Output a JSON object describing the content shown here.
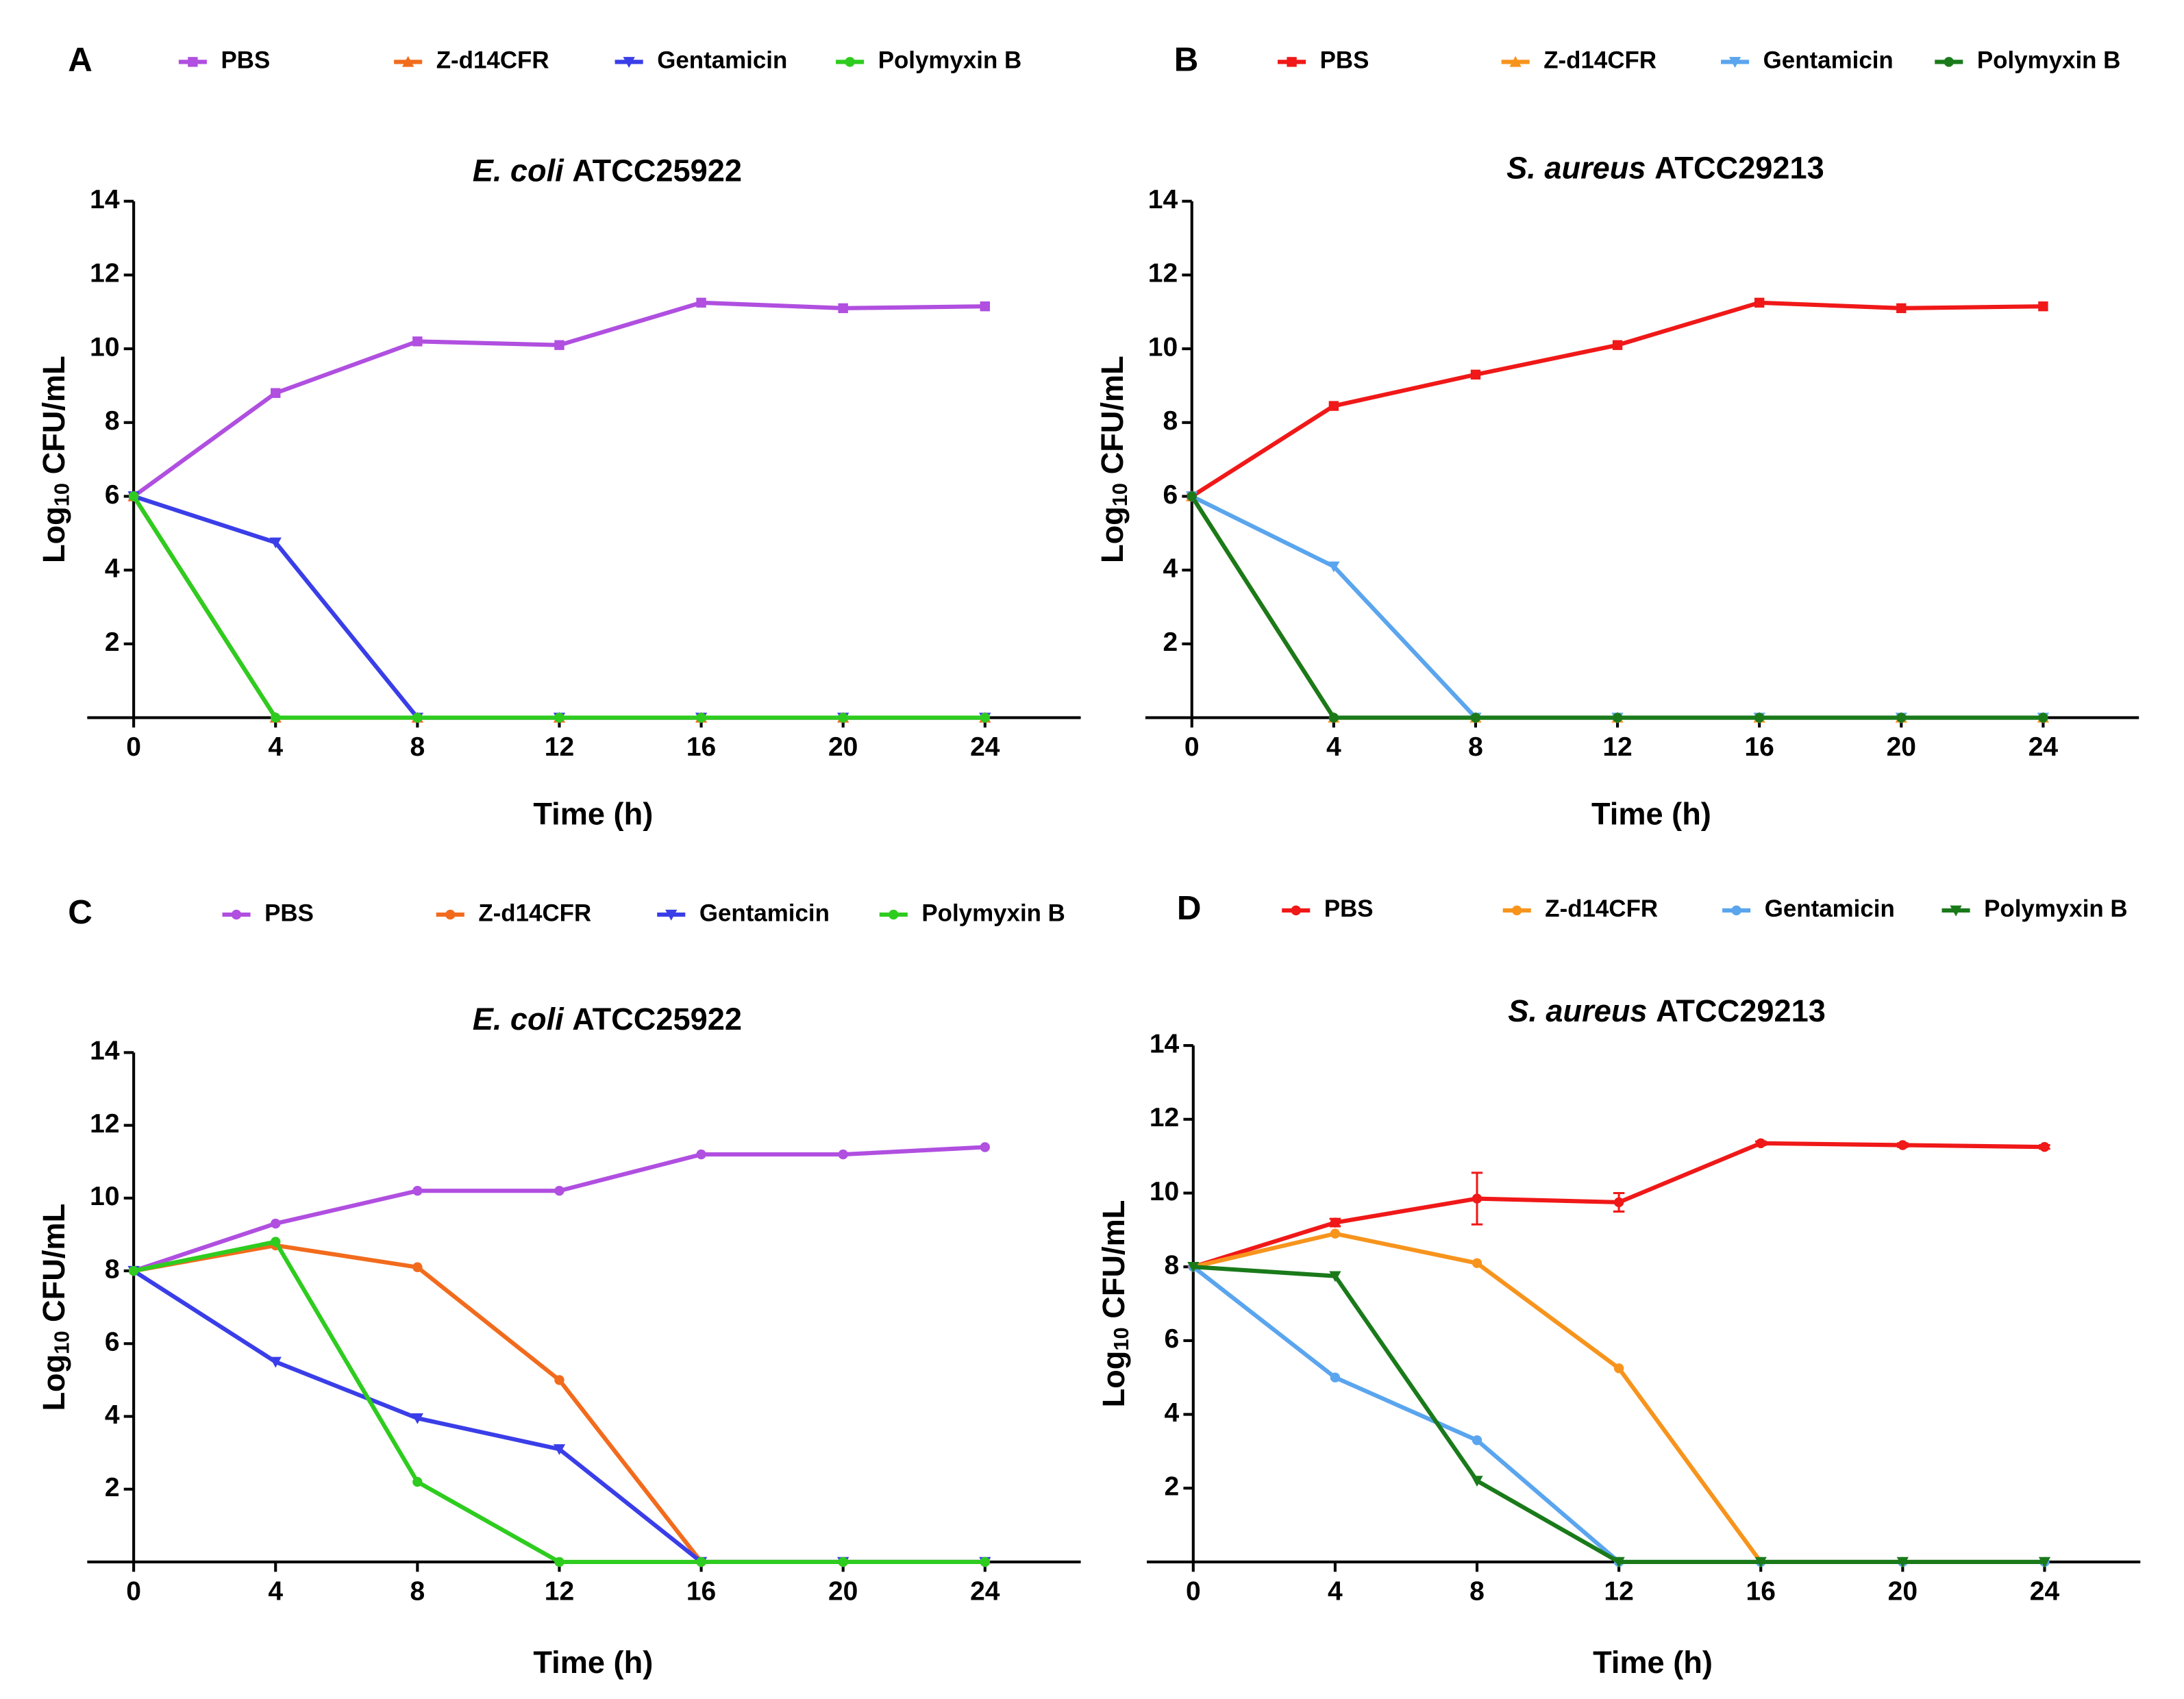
{
  "chart_data": [
    {
      "type": "line",
      "panel": "A",
      "title_italic": "E. coli",
      "title": "ATCC25922",
      "y_label": {
        "base": "Log",
        "sub": "10",
        "unit": "CFU/mL"
      },
      "x_label": "Time (h)",
      "x": [
        0,
        4,
        8,
        12,
        16,
        20,
        24
      ],
      "xlim": [
        0,
        26.7
      ],
      "xticks": [
        0,
        4,
        8,
        12,
        16,
        20,
        24
      ],
      "ylim": [
        0,
        14
      ],
      "yticks": [
        2,
        4,
        6,
        8,
        10,
        12,
        14
      ],
      "series": [
        {
          "name": "PBS",
          "color": "#b04fe0",
          "marker": "square",
          "values": [
            6,
            8.8,
            10.2,
            10.1,
            11.25,
            11.1,
            11.15
          ]
        },
        {
          "name": "Z-d14CFR",
          "color": "#f26b1d",
          "marker": "triangle-up",
          "values": [
            6,
            0,
            0,
            0,
            0,
            0,
            0
          ]
        },
        {
          "name": "Gentamicin",
          "color": "#3a3ee8",
          "marker": "triangle-down",
          "values": [
            6,
            4.75,
            0,
            0,
            0,
            0,
            0
          ]
        },
        {
          "name": "Polymyxin B",
          "color": "#2ecc1f",
          "marker": "circle",
          "values": [
            6,
            0,
            0,
            0,
            0,
            0,
            0
          ]
        }
      ]
    },
    {
      "type": "line",
      "panel": "B",
      "title_italic": "S. aureus",
      "title": "ATCC29213",
      "y_label": {
        "base": "Log",
        "sub": "10",
        "unit": "CFU/mL"
      },
      "x_label": "Time (h)",
      "x": [
        0,
        4,
        8,
        12,
        16,
        20,
        24
      ],
      "xlim": [
        0,
        26.7
      ],
      "xticks": [
        0,
        4,
        8,
        12,
        16,
        20,
        24
      ],
      "ylim": [
        0,
        14
      ],
      "yticks": [
        2,
        4,
        6,
        8,
        10,
        12,
        14
      ],
      "series": [
        {
          "name": "PBS",
          "color": "#f01818",
          "marker": "square",
          "values": [
            6,
            8.45,
            9.3,
            10.1,
            11.25,
            11.1,
            11.15
          ]
        },
        {
          "name": "Z-d14CFR",
          "color": "#f7941d",
          "marker": "triangle-up",
          "values": [
            6,
            0,
            0,
            0,
            0,
            0,
            0
          ]
        },
        {
          "name": "Gentamicin",
          "color": "#5aa5ee",
          "marker": "triangle-down",
          "values": [
            6,
            4.1,
            0,
            0,
            0,
            0,
            0
          ]
        },
        {
          "name": "Polymyxin B",
          "color": "#1a7a1a",
          "marker": "circle",
          "values": [
            6,
            0,
            0,
            0,
            0,
            0,
            0
          ]
        }
      ]
    },
    {
      "type": "line",
      "panel": "C",
      "title_italic": "E. coli",
      "title": "ATCC25922",
      "y_label": {
        "base": "Log",
        "sub": "10",
        "unit": "CFU/mL"
      },
      "x_label": "Time (h)",
      "x": [
        0,
        4,
        8,
        12,
        16,
        20,
        24
      ],
      "xlim": [
        0,
        26.7
      ],
      "xticks": [
        0,
        4,
        8,
        12,
        16,
        20,
        24
      ],
      "ylim": [
        0,
        14
      ],
      "yticks": [
        2,
        4,
        6,
        8,
        10,
        12,
        14
      ],
      "series": [
        {
          "name": "PBS",
          "color": "#b04fe0",
          "marker": "circle",
          "values": [
            8,
            9.3,
            10.2,
            10.2,
            11.2,
            11.2,
            11.4
          ]
        },
        {
          "name": "Z-d14CFR",
          "color": "#f26b1d",
          "marker": "circle",
          "values": [
            8,
            8.7,
            8.1,
            5,
            0,
            0,
            0
          ]
        },
        {
          "name": "Gentamicin",
          "color": "#3a3ee8",
          "marker": "triangle-down",
          "values": [
            8,
            5.5,
            3.95,
            3.1,
            0,
            0,
            0
          ]
        },
        {
          "name": "Polymyxin B",
          "color": "#2ecc1f",
          "marker": "circle",
          "values": [
            8,
            8.8,
            2.2,
            0,
            0,
            0,
            0
          ]
        }
      ]
    },
    {
      "type": "line",
      "panel": "D",
      "title_italic": "S. aureus",
      "title": "ATCC29213",
      "y_label": {
        "base": "Log",
        "sub": "10",
        "unit": "CFU/mL"
      },
      "x_label": "Time (h)",
      "x": [
        0,
        4,
        8,
        12,
        16,
        20,
        24
      ],
      "xlim": [
        0,
        26.7
      ],
      "xticks": [
        0,
        4,
        8,
        12,
        16,
        20,
        24
      ],
      "ylim": [
        0,
        14
      ],
      "yticks": [
        2,
        4,
        6,
        8,
        10,
        12,
        14
      ],
      "series": [
        {
          "name": "PBS",
          "color": "#f01818",
          "marker": "circle",
          "values": [
            8,
            9.2,
            9.85,
            9.75,
            11.35,
            11.3,
            11.25
          ],
          "errors": [
            0,
            0.1,
            0.7,
            0.25,
            0.05,
            0.05,
            0.05
          ]
        },
        {
          "name": "Z-d14CFR",
          "color": "#f7941d",
          "marker": "circle",
          "values": [
            8,
            8.9,
            8.1,
            5.25,
            0,
            0,
            0
          ]
        },
        {
          "name": "Gentamicin",
          "color": "#5aa5ee",
          "marker": "circle",
          "values": [
            8,
            5,
            3.3,
            0,
            0,
            0,
            0
          ]
        },
        {
          "name": "Polymyxin B",
          "color": "#1a7a1a",
          "marker": "triangle-down",
          "values": [
            8,
            7.75,
            2.2,
            0,
            0,
            0,
            0
          ]
        }
      ]
    }
  ]
}
